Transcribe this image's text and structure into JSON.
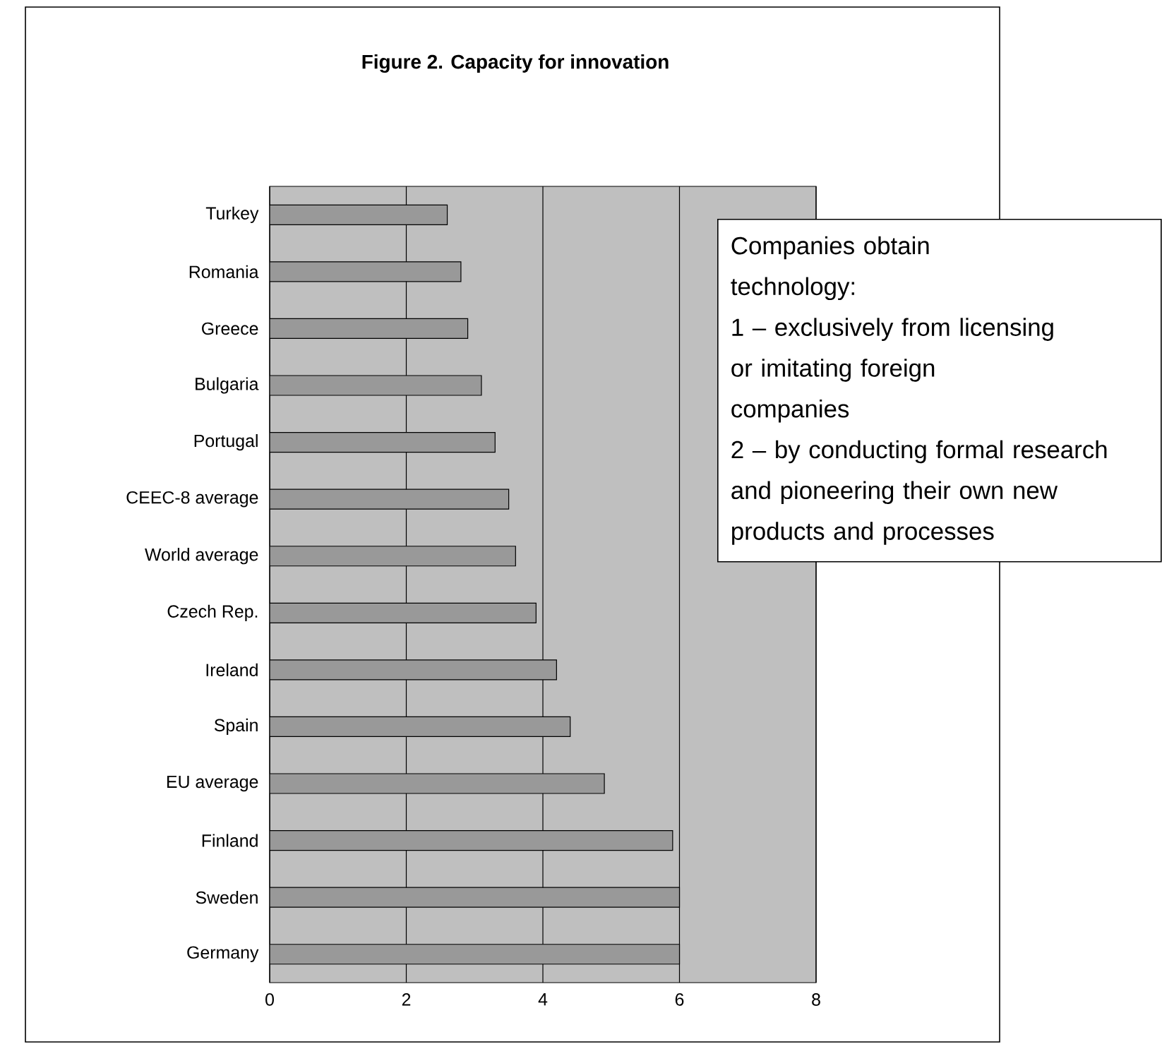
{
  "chart_data": {
    "type": "bar",
    "orientation": "horizontal",
    "title": "Figure 2. Capacity for innovation",
    "categories": [
      "Turkey",
      "Romania",
      "Greece",
      "Bulgaria",
      "Portugal",
      "CEEC-8 average",
      "World average",
      "Czech Rep.",
      "Ireland",
      "Spain",
      "EU average",
      "Finland",
      "Sweden",
      "Germany"
    ],
    "values": [
      2.6,
      2.8,
      2.9,
      3.1,
      3.3,
      3.5,
      3.6,
      3.9,
      4.2,
      4.4,
      4.9,
      5.9,
      6.0,
      6.0
    ],
    "color": "#999999",
    "xlim": [
      0,
      8
    ],
    "xticks": [
      0,
      2,
      4,
      6,
      8
    ],
    "grid": "x",
    "annotations": [
      "Companies obtain technology:",
      "1 – exclusively from licensing or imitating foreign companies",
      "2 – by conducting formal research and pioneering their own new products and processes"
    ]
  }
}
